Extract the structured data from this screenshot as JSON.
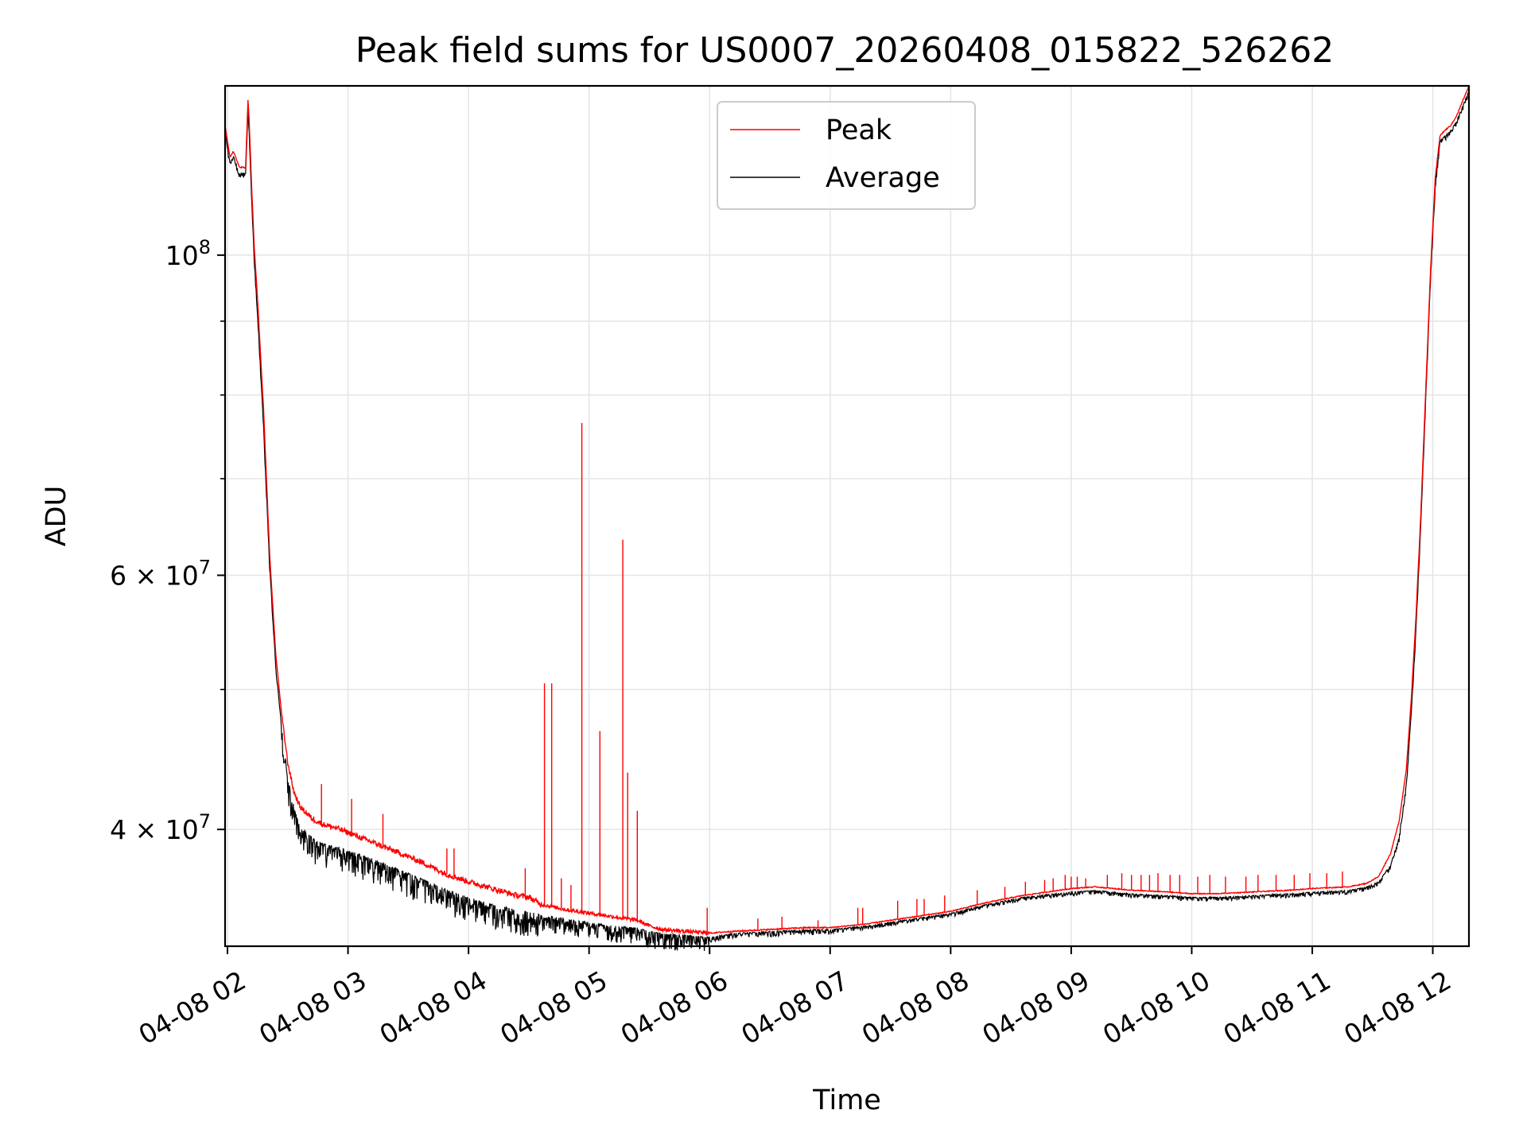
{
  "chart_data": {
    "type": "line",
    "title": "Peak field sums for US0007_20260408_015822_526262",
    "xlabel": "Time",
    "ylabel": "ADU",
    "y_scale": "log",
    "grid": true,
    "legend_position": "top-center",
    "x_unit": "hours",
    "xlim": [
      1.98,
      12.3
    ],
    "ylim": [
      33200000,
      131000000
    ],
    "x_ticks": [
      {
        "value": 2,
        "label": "04-08 02"
      },
      {
        "value": 3,
        "label": "04-08 03"
      },
      {
        "value": 4,
        "label": "04-08 04"
      },
      {
        "value": 5,
        "label": "04-08 05"
      },
      {
        "value": 6,
        "label": "04-08 06"
      },
      {
        "value": 7,
        "label": "04-08 07"
      },
      {
        "value": 8,
        "label": "04-08 08"
      },
      {
        "value": 9,
        "label": "04-08 09"
      },
      {
        "value": 10,
        "label": "04-08 10"
      },
      {
        "value": 11,
        "label": "04-08 11"
      },
      {
        "value": 12,
        "label": "04-08 12"
      }
    ],
    "y_ticks_major": [
      {
        "value": 40000000,
        "base": "4 × 10",
        "exp": "7"
      },
      {
        "value": 60000000,
        "base": "6 × 10",
        "exp": "7"
      },
      {
        "value": 100000000,
        "base": "10",
        "exp": "8"
      }
    ],
    "y_ticks_minor": [
      50000000,
      70000000,
      80000000,
      90000000
    ],
    "series": [
      {
        "name": "Peak",
        "color": "#ff0000",
        "x": [
          1.98,
          2.02,
          2.05,
          2.1,
          2.15,
          2.17,
          2.18,
          2.2,
          2.22,
          2.25,
          2.3,
          2.35,
          2.4,
          2.45,
          2.5,
          2.55,
          2.6,
          2.7,
          2.8,
          2.9,
          3.0,
          3.2,
          3.4,
          3.6,
          3.8,
          4.0,
          4.2,
          4.4,
          4.5,
          4.6,
          4.8,
          5.0,
          5.2,
          5.4,
          5.5,
          5.6,
          5.8,
          6.0,
          6.2,
          6.5,
          6.8,
          7.0,
          7.3,
          7.6,
          8.0,
          8.3,
          8.6,
          9.0,
          9.2,
          9.5,
          9.8,
          10.0,
          10.2,
          10.5,
          10.8,
          11.0,
          11.3,
          11.45,
          11.55,
          11.65,
          11.72,
          11.78,
          11.82,
          11.86,
          11.9,
          11.94,
          11.98,
          12.02,
          12.06,
          12.1,
          12.15,
          12.2,
          12.25,
          12.3
        ],
        "y": [
          123000000,
          117000000,
          118000000,
          115000000,
          115000000,
          128000000,
          124000000,
          112000000,
          102000000,
          93000000,
          78000000,
          62000000,
          53000000,
          48000000,
          44500000,
          42500000,
          41500000,
          40700000,
          40300000,
          40100000,
          39800000,
          39200000,
          38600000,
          38000000,
          37300000,
          36800000,
          36400000,
          36000000,
          35900000,
          35500000,
          35200000,
          35000000,
          34800000,
          34600000,
          34300000,
          34100000,
          34000000,
          33900000,
          34000000,
          34100000,
          34200000,
          34200000,
          34400000,
          34700000,
          35100000,
          35600000,
          36000000,
          36400000,
          36500000,
          36300000,
          36200000,
          36100000,
          36100000,
          36200000,
          36300000,
          36400000,
          36500000,
          36700000,
          37100000,
          38500000,
          40500000,
          44000000,
          49000000,
          56000000,
          66000000,
          80000000,
          97000000,
          113000000,
          121000000,
          122000000,
          123000000,
          125000000,
          128000000,
          131000000
        ]
      },
      {
        "name": "Average",
        "color": "#000000",
        "x": [
          1.98,
          2.02,
          2.05,
          2.1,
          2.15,
          2.17,
          2.18,
          2.2,
          2.22,
          2.25,
          2.3,
          2.35,
          2.4,
          2.45,
          2.5,
          2.55,
          2.6,
          2.7,
          2.8,
          2.9,
          3.0,
          3.2,
          3.4,
          3.6,
          3.8,
          4.0,
          4.2,
          4.4,
          4.5,
          4.6,
          4.8,
          5.0,
          5.2,
          5.4,
          5.5,
          5.6,
          5.8,
          6.0,
          6.2,
          6.5,
          6.8,
          7.0,
          7.3,
          7.6,
          8.0,
          8.3,
          8.6,
          9.0,
          9.2,
          9.5,
          9.8,
          10.0,
          10.2,
          10.5,
          10.8,
          11.0,
          11.3,
          11.45,
          11.55,
          11.65,
          11.72,
          11.78,
          11.82,
          11.86,
          11.9,
          11.94,
          11.98,
          12.02,
          12.06,
          12.1,
          12.15,
          12.2,
          12.25,
          12.3
        ],
        "y": [
          122000000,
          116000000,
          117000000,
          114000000,
          114000000,
          126000000,
          122000000,
          110000000,
          100000000,
          91000000,
          76000000,
          61000000,
          52000000,
          47000000,
          43500000,
          41500000,
          40300000,
          39500000,
          39100000,
          38900000,
          38700000,
          38200000,
          37600000,
          37000000,
          36400000,
          35900000,
          35500000,
          35200000,
          35100000,
          34900000,
          34700000,
          34500000,
          34300000,
          34200000,
          34000000,
          33900000,
          33800000,
          33700000,
          33900000,
          34000000,
          34100000,
          34100000,
          34300000,
          34600000,
          35000000,
          35500000,
          35900000,
          36200000,
          36300000,
          36100000,
          36000000,
          35900000,
          35900000,
          36000000,
          36100000,
          36200000,
          36300000,
          36500000,
          36800000,
          37800000,
          39500000,
          43000000,
          48000000,
          55000000,
          65000000,
          79000000,
          96000000,
          112000000,
          120000000,
          121000000,
          122000000,
          124000000,
          127000000,
          130000000
        ]
      }
    ],
    "peak_spikes": {
      "x": [
        2.78,
        3.03,
        3.29,
        3.82,
        3.88,
        4.47,
        4.63,
        4.69,
        4.77,
        4.85,
        4.94,
        5.09,
        5.28,
        5.32,
        5.4,
        5.98,
        6.4,
        6.6,
        6.9,
        7.23,
        7.27,
        7.56,
        7.72,
        7.78,
        7.95,
        8.22,
        8.45,
        8.62,
        8.78,
        8.85,
        8.95,
        9.0,
        9.05,
        9.12,
        9.3,
        9.42,
        9.5,
        9.58,
        9.65,
        9.72,
        9.82,
        9.9,
        10.05,
        10.15,
        10.28,
        10.45,
        10.55,
        10.7,
        10.85,
        10.98,
        11.12,
        11.25
      ],
      "y": [
        43000000,
        42000000,
        41000000,
        38800000,
        38800000,
        37600000,
        50500000,
        50500000,
        37000000,
        36600000,
        76500000,
        46800000,
        63500000,
        43800000,
        41200000,
        35300000,
        34700000,
        34800000,
        34600000,
        35300000,
        35300000,
        35700000,
        35800000,
        35800000,
        36000000,
        36300000,
        36500000,
        36800000,
        36900000,
        37000000,
        37200000,
        37100000,
        37100000,
        37000000,
        37200000,
        37300000,
        37200000,
        37200000,
        37200000,
        37300000,
        37200000,
        37200000,
        37100000,
        37200000,
        37100000,
        37100000,
        37200000,
        37200000,
        37200000,
        37300000,
        37300000,
        37400000
      ]
    }
  }
}
